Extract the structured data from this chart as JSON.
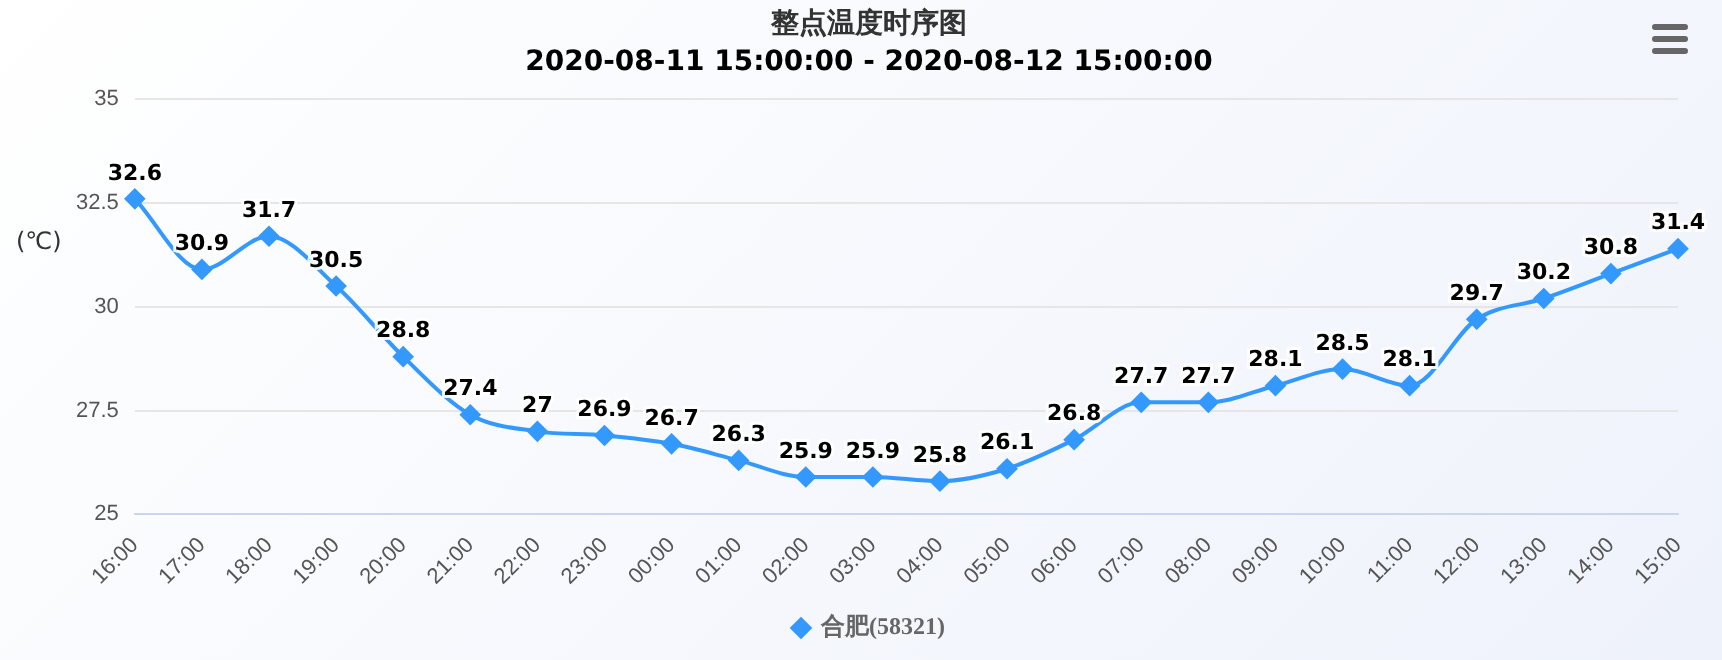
{
  "chart_data": {
    "type": "line",
    "title": "整点温度时序图",
    "subtitle": "2020-08-11 15:00:00 - 2020-08-12 15:00:00",
    "ylabel": "(℃)",
    "categories": [
      "16:00",
      "17:00",
      "18:00",
      "19:00",
      "20:00",
      "21:00",
      "22:00",
      "23:00",
      "00:00",
      "01:00",
      "02:00",
      "03:00",
      "04:00",
      "05:00",
      "06:00",
      "07:00",
      "08:00",
      "09:00",
      "10:00",
      "11:00",
      "12:00",
      "13:00",
      "14:00",
      "15:00"
    ],
    "series": [
      {
        "name": "合肥(58321)",
        "color": "#3399ff",
        "values": [
          32.6,
          30.9,
          31.7,
          30.5,
          28.8,
          27.4,
          27,
          26.9,
          26.7,
          26.3,
          25.9,
          25.9,
          25.8,
          26.1,
          26.8,
          27.7,
          27.7,
          28.1,
          28.5,
          28.1,
          29.7,
          30.2,
          30.8,
          31.4
        ]
      }
    ],
    "ylim": [
      25,
      35
    ],
    "yticks": [
      25,
      27.5,
      30,
      32.5,
      35
    ],
    "grid": "y",
    "legend": "bottom",
    "marker": "diamond",
    "line_style": "solid",
    "data_labels": true
  }
}
